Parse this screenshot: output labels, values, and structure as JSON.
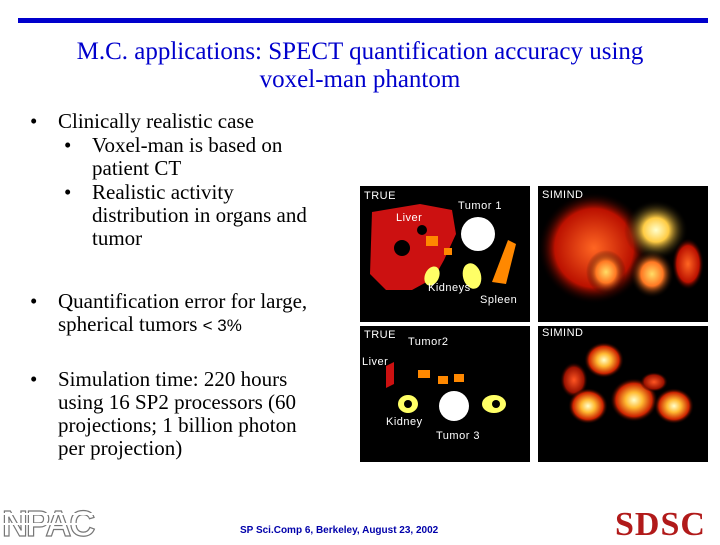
{
  "title_line1": "M.C. applications: SPECT quantification accuracy using",
  "title_line2": "voxel-man phantom",
  "bullets": {
    "b1": "Clinically realistic case",
    "b1_sub1_l1": "Voxel-man is based on",
    "b1_sub1_l2": "patient CT",
    "b1_sub2_l1": "Realistic activity",
    "b1_sub2_l2": "distribution in organs and",
    "b1_sub2_l3": "tumor",
    "b2_l1": "Quantification error for large,",
    "b2_l2": "spherical tumors",
    "b2_pct": "< 3%",
    "b3_l1": "Simulation time: 220 hours",
    "b3_l2": "using 16  SP2 processors (60",
    "b3_l3": "projections; 1 billion photon",
    "b3_l4": "per projection)"
  },
  "panels": {
    "top_true": "TRUE",
    "top_simind": "SIMIND",
    "top_tumor": "Tumor 1",
    "top_liver": "Liver",
    "top_kidneys": "Kidneys",
    "top_spleen": "Spleen",
    "bot_true": "TRUE",
    "bot_simind": "SIMIND",
    "bot_tumor2": "Tumor2",
    "bot_liver": "Liver",
    "bot_kidney": "Kidney",
    "bot_tumor3": "Tumor 3"
  },
  "footer": "SP Sci.Comp 6, Berkeley, August 23, 2002",
  "logo_left": "NPAC",
  "logo_right": "SDSC"
}
